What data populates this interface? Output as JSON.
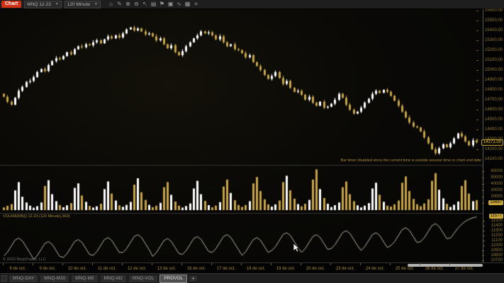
{
  "toolbar": {
    "chart_button": "Chart",
    "instrument": "MNQ 12-23",
    "interval": "120 Minute",
    "icons": [
      "bank-icon",
      "pencil-icon",
      "zoom-in-icon",
      "zoom-out-icon",
      "cursor-icon",
      "document-icon",
      "flag-icon",
      "camera-icon",
      "zigzag-icon",
      "grid-icon",
      "list-icon"
    ],
    "icon_glyphs": [
      "⌂",
      "✎",
      "⊕",
      "⊖",
      "↖",
      "▤",
      "⚑",
      "▣",
      "∿",
      "▦",
      "≡"
    ]
  },
  "colors": {
    "up_bar": "#ffffff",
    "down_bar": "#c7a347",
    "volma_line": "#b9b39f",
    "axis_text": "#8f7630",
    "accent_red": "#cf3117",
    "price_box_gold": "#c7a53c"
  },
  "chart_data": {
    "type": "candlestick",
    "title": "MNQ 12-23 (120 Minute)",
    "warning_text": "Bar timer disabled since the current time is outside session time or chart end date",
    "x_labels": [
      "6 de oct.",
      "9 de oct.",
      "10 de oct.",
      "11 de oct.",
      "12 de oct.",
      "13 de oct.",
      "16 de oct.",
      "17 de oct.",
      "18 de oct.",
      "19 de oct.",
      "20 de oct.",
      "23 de oct.",
      "24 de oct.",
      "25 de oct.",
      "26 de oct.",
      "27 de oct."
    ],
    "panels": [
      {
        "name": "price",
        "type": "candlestick",
        "first_open": 14760,
        "closes": [
          14730,
          14680,
          14650,
          14720,
          14790,
          14830,
          14880,
          14890,
          14930,
          14980,
          15010,
          14990,
          15050,
          15090,
          15120,
          15110,
          15140,
          15180,
          15160,
          15210,
          15240,
          15230,
          15260,
          15250,
          15280,
          15300,
          15270,
          15310,
          15340,
          15320,
          15350,
          15330,
          15370,
          15410,
          15430,
          15400,
          15420,
          15390,
          15360,
          15370,
          15340,
          15300,
          15320,
          15260,
          15220,
          15250,
          15180,
          15150,
          15190,
          15240,
          15280,
          15320,
          15350,
          15390,
          15370,
          15380,
          15350,
          15310,
          15340,
          15280,
          15240,
          15260,
          15210,
          15200,
          15170,
          15130,
          15150,
          15080,
          15040,
          15000,
          14950,
          14910,
          14940,
          14980,
          14920,
          14860,
          14890,
          14820,
          14780,
          14790,
          14750,
          14700,
          14730,
          14670,
          14640,
          14680,
          14620,
          14630,
          14660,
          14700,
          14760,
          14720,
          14650,
          14600,
          14560,
          14580,
          14620,
          14670,
          14710,
          14760,
          14790,
          14770,
          14800,
          14780,
          14740,
          14690,
          14640,
          14580,
          14520,
          14470,
          14430,
          14420,
          14380,
          14320,
          14260,
          14200,
          14160,
          14210,
          14250,
          14220,
          14260,
          14310,
          14360,
          14330,
          14280,
          14240,
          14290,
          14271
        ],
        "ylim": [
          14050,
          15610
        ],
        "yticks": [
          "15600.00",
          "15500.00",
          "15400.00",
          "15300.00",
          "15200.00",
          "15100.00",
          "15000.00",
          "14900.00",
          "14800.00",
          "14700.00",
          "14600.00",
          "14500.00",
          "14400.00",
          "14300.00",
          "14200.00",
          "14100.00"
        ],
        "last_price": "14271.00"
      },
      {
        "name": "volume",
        "type": "bar",
        "values": [
          4200,
          6800,
          9500,
          31000,
          44000,
          21000,
          12000,
          7000,
          3800,
          6200,
          12000,
          38000,
          47000,
          25000,
          14000,
          8000,
          4500,
          7500,
          11000,
          35000,
          42000,
          23000,
          13000,
          6500,
          4000,
          6000,
          10000,
          33000,
          45000,
          26000,
          15000,
          7500,
          5200,
          8200,
          13000,
          40000,
          50000,
          28000,
          16000,
          8200,
          4600,
          7000,
          11500,
          36000,
          44000,
          24000,
          13500,
          7000,
          3900,
          6400,
          10500,
          34000,
          46000,
          25000,
          14500,
          7800,
          4400,
          7200,
          12500,
          37000,
          48000,
          27000,
          15500,
          8000,
          5000,
          8000,
          14000,
          42000,
          52000,
          30000,
          17000,
          9000,
          5500,
          9000,
          15000,
          44000,
          54000,
          31000,
          18000,
          9500,
          6000,
          10000,
          16000,
          48000,
          64000,
          33000,
          19000,
          10000,
          4800,
          7800,
          12000,
          36000,
          45000,
          25000,
          14000,
          7500,
          4200,
          7000,
          11000,
          34000,
          43000,
          24000,
          13000,
          7000,
          5600,
          9200,
          15000,
          43000,
          53000,
          30000,
          17500,
          9200,
          6200,
          10500,
          17000,
          46000,
          58000,
          32000,
          18500,
          9800,
          5000,
          8500,
          13500,
          38000,
          47000,
          26000,
          14000,
          15687
        ],
        "yticks": [
          "60000",
          "50000",
          "40000",
          "30000",
          "20000",
          "10000"
        ],
        "last_value": "15687"
      },
      {
        "name": "volma",
        "type": "line",
        "label": "VOLMA(MNQ 12-23 (120 Minute),360)",
        "values": [
          10790,
          10870,
          10990,
          11110,
          11150,
          11090,
          10970,
          10850,
          10720,
          10800,
          10920,
          11040,
          11080,
          11020,
          10900,
          10780,
          10760,
          10840,
          10960,
          11080,
          11120,
          11060,
          10940,
          10820,
          10800,
          10880,
          11000,
          11120,
          11160,
          11100,
          10980,
          10860,
          10860,
          10940,
          11060,
          11180,
          11220,
          11160,
          11040,
          10920,
          10780,
          10860,
          10980,
          11100,
          11140,
          11080,
          10960,
          10840,
          10820,
          10900,
          11020,
          11140,
          11180,
          11120,
          11000,
          10880,
          10860,
          10940,
          11060,
          11180,
          11220,
          11160,
          11040,
          10920,
          10800,
          10880,
          11000,
          11120,
          11160,
          11100,
          10980,
          10860,
          10900,
          10980,
          11100,
          11220,
          11260,
          11200,
          11080,
          10960,
          10860,
          10940,
          11060,
          11180,
          11220,
          11160,
          11040,
          10920,
          10940,
          11020,
          11140,
          11260,
          11300,
          11240,
          11120,
          11000,
          10900,
          10980,
          11100,
          11220,
          11260,
          11200,
          11080,
          10960,
          11000,
          11080,
          11200,
          11320,
          11360,
          11300,
          11180,
          11060,
          11080,
          11160,
          11280,
          11400,
          11440,
          11380,
          11260,
          11140,
          11150,
          11250,
          11350,
          11430,
          11490,
          11530,
          11560,
          11577
        ],
        "yticks": [
          "11500",
          "11400",
          "11300",
          "11200",
          "11100",
          "11000",
          "10900",
          "10800",
          "10700"
        ],
        "last_value": "11577"
      }
    ]
  },
  "footer": {
    "copyright": "© 2023 NinjaTrader, LLC"
  },
  "tabs": {
    "items": [
      "MNQ-DAY",
      "MNQ-M30",
      "MNQ-M5",
      "MNQ-M2",
      "MNQ-VOL",
      "PROVOL"
    ],
    "active": "PROVOL",
    "add_label": "+"
  }
}
